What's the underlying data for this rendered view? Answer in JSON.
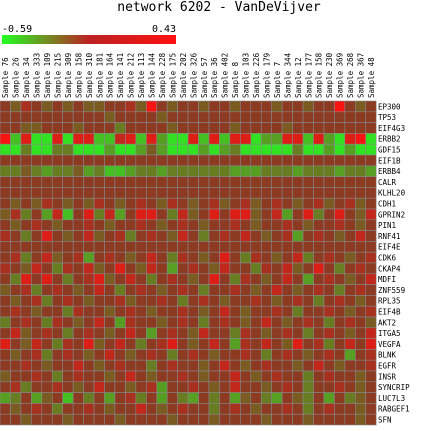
{
  "chart_data": {
    "type": "heatmap",
    "title": "network 6202 - VanDeVijver",
    "scale": {
      "min": "-0.59",
      "max": "0.43",
      "min_color": "#22ff22",
      "max_color": "#ff1111",
      "mid_color": "#8c3b22"
    },
    "columns": [
      "Sample 76",
      "Sample 26",
      "Sample 34",
      "Sample 333",
      "Sample 109",
      "Sample 215",
      "Sample 309",
      "Sample 158",
      "Sample 310",
      "Sample 181",
      "Sample 164",
      "Sample 141",
      "Sample 212",
      "Sample 113",
      "Sample 144",
      "Sample 228",
      "Sample 175",
      "Sample 202",
      "Sample 326",
      "Sample 57",
      "Sample 36",
      "Sample 402",
      "Sample 8",
      "Sample 103",
      "Sample 226",
      "Sample 179",
      "Sample 7",
      "Sample 344",
      "Sample 12",
      "Sample 177",
      "Sample 158",
      "Sample 230",
      "Sample 369",
      "Sample 268",
      "Sample 367",
      "Sample 48"
    ],
    "rows": [
      "EP300",
      "TP53",
      "EIF4G3",
      "ERBB2",
      "GDF15",
      "EIF1B",
      "ERBB4",
      "CALR",
      "KLHL20",
      "CDH1",
      "GPRIN2",
      "PIN1",
      "RNF41",
      "EIF4E",
      "CDK6",
      "CKAP4",
      "MDFI",
      "ZNF559",
      "RPL35",
      "EIF4B",
      "AKT2",
      "ITGA5",
      "VEGFA",
      "BLNK",
      "EGFR",
      "INSR",
      "SYNCRIP",
      "LUC7L3",
      "RABGEF1",
      "SFN"
    ],
    "values": [
      [
        0.0,
        -0.1,
        0.1,
        0.0,
        -0.1,
        0.0,
        -0.1,
        0.0,
        -0.1,
        -0.1,
        0.0,
        0.0,
        0.1,
        -0.1,
        0.4,
        0.0,
        -0.1,
        0.0,
        0.0,
        -0.1,
        0.0,
        0.0,
        -0.1,
        0.0,
        0.0,
        0.0,
        -0.1,
        0.0,
        0.0,
        -0.1,
        0.0,
        0.0,
        0.4,
        0.0,
        -0.1,
        0.0
      ],
      [
        0.0,
        0.0,
        0.0,
        0.0,
        0.0,
        0.0,
        0.0,
        0.0,
        0.0,
        0.0,
        -0.1,
        0.0,
        0.0,
        0.0,
        0.0,
        -0.1,
        0.0,
        0.0,
        0.0,
        0.0,
        0.0,
        0.0,
        0.0,
        0.0,
        0.0,
        0.0,
        0.0,
        0.0,
        0.0,
        0.0,
        0.0,
        0.0,
        0.0,
        0.0,
        0.0,
        0.0
      ],
      [
        0.0,
        0.0,
        -0.1,
        -0.1,
        0.0,
        0.0,
        0.0,
        -0.1,
        0.0,
        0.0,
        0.0,
        -0.2,
        0.0,
        0.0,
        0.0,
        0.0,
        -0.1,
        0.0,
        0.0,
        0.0,
        0.0,
        0.0,
        -0.1,
        0.0,
        0.0,
        0.0,
        0.0,
        -0.1,
        0.0,
        0.0,
        0.0,
        0.0,
        0.0,
        0.0,
        0.0,
        0.0
      ],
      [
        0.4,
        -0.4,
        0.3,
        -0.5,
        -0.5,
        0.3,
        -0.5,
        0.3,
        0.3,
        -0.4,
        -0.4,
        0.2,
        0.3,
        -0.4,
        0.3,
        -0.3,
        -0.5,
        -0.5,
        0.3,
        -0.4,
        0.3,
        -0.4,
        0.3,
        0.3,
        -0.5,
        -0.3,
        -0.3,
        0.3,
        0.3,
        -0.4,
        0.3,
        -0.3,
        -0.5,
        0.3,
        0.4,
        -0.5
      ],
      [
        -0.5,
        -0.5,
        -0.2,
        -0.5,
        -0.5,
        -0.2,
        -0.2,
        -0.5,
        -0.5,
        -0.5,
        -0.3,
        -0.5,
        -0.5,
        -0.3,
        -0.1,
        -0.3,
        -0.5,
        -0.5,
        -0.5,
        -0.3,
        -0.5,
        -0.3,
        -0.2,
        -0.5,
        -0.5,
        -0.5,
        -0.5,
        -0.5,
        -0.2,
        -0.5,
        -0.5,
        -0.3,
        -0.5,
        -0.3,
        -0.5,
        -0.5
      ],
      [
        0.0,
        0.0,
        0.0,
        0.0,
        0.0,
        0.0,
        0.0,
        0.0,
        0.0,
        0.0,
        0.0,
        0.0,
        0.0,
        0.0,
        0.0,
        0.0,
        0.0,
        0.0,
        0.0,
        0.0,
        0.0,
        0.0,
        0.0,
        0.0,
        0.0,
        0.0,
        0.0,
        0.0,
        0.0,
        0.0,
        0.0,
        0.0,
        0.0,
        0.0,
        0.0,
        0.0
      ],
      [
        -0.2,
        -0.2,
        -0.1,
        -0.2,
        -0.3,
        -0.2,
        -0.2,
        -0.1,
        -0.3,
        -0.2,
        -0.4,
        -0.4,
        -0.3,
        -0.2,
        -0.2,
        -0.3,
        -0.2,
        -0.2,
        -0.2,
        -0.2,
        -0.2,
        -0.2,
        -0.3,
        -0.3,
        -0.3,
        -0.2,
        -0.2,
        -0.2,
        -0.3,
        -0.2,
        -0.2,
        -0.2,
        -0.3,
        -0.2,
        -0.2,
        -0.3
      ],
      [
        0.0,
        0.0,
        0.0,
        0.0,
        0.0,
        0.0,
        0.0,
        0.0,
        0.0,
        0.0,
        0.0,
        0.0,
        0.0,
        0.0,
        0.0,
        0.0,
        0.0,
        0.0,
        0.0,
        0.0,
        0.0,
        0.0,
        0.0,
        0.0,
        0.0,
        0.0,
        0.0,
        0.0,
        0.0,
        0.0,
        0.0,
        0.0,
        0.0,
        0.0,
        0.0,
        0.0
      ],
      [
        0.0,
        0.0,
        0.0,
        0.0,
        0.0,
        0.0,
        0.0,
        0.0,
        0.0,
        0.0,
        0.0,
        0.0,
        0.0,
        0.0,
        0.0,
        0.0,
        0.0,
        0.0,
        0.0,
        0.0,
        0.0,
        0.0,
        0.0,
        0.0,
        0.0,
        0.0,
        0.0,
        0.0,
        0.0,
        0.0,
        0.0,
        0.0,
        0.0,
        0.0,
        0.0,
        0.0
      ],
      [
        0.0,
        -0.1,
        0.0,
        -0.1,
        0.1,
        0.0,
        -0.1,
        0.0,
        -0.1,
        0.1,
        0.0,
        -0.1,
        0.0,
        0.1,
        0.0,
        -0.1,
        0.1,
        0.0,
        -0.1,
        0.0,
        0.1,
        -0.1,
        0.0,
        0.1,
        -0.1,
        0.0,
        0.1,
        0.0,
        -0.1,
        0.0,
        0.1,
        -0.1,
        0.0,
        0.1,
        -0.1,
        0.0
      ],
      [
        -0.1,
        0.1,
        -0.2,
        0.0,
        -0.3,
        0.2,
        -0.4,
        0.0,
        0.3,
        -0.2,
        0.2,
        -0.3,
        0.0,
        0.3,
        0.3,
        0.0,
        -0.2,
        0.2,
        -0.1,
        0.0,
        0.3,
        0.0,
        0.3,
        0.3,
        -0.1,
        0.0,
        0.2,
        -0.3,
        0.0,
        0.3,
        -0.2,
        0.0,
        0.3,
        0.0,
        -0.1,
        0.2
      ],
      [
        0.0,
        -0.1,
        0.0,
        0.1,
        0.0,
        -0.1,
        0.0,
        0.0,
        0.1,
        0.0,
        -0.1,
        0.0,
        0.0,
        0.1,
        0.0,
        -0.1,
        0.0,
        0.1,
        0.0,
        -0.1,
        0.0,
        0.0,
        0.1,
        0.0,
        -0.1,
        0.0,
        0.0,
        0.1,
        0.0,
        -0.1,
        0.0,
        0.0,
        0.1,
        0.0,
        -0.1,
        0.0
      ],
      [
        0.1,
        0.0,
        -0.2,
        0.0,
        0.3,
        0.0,
        -0.1,
        0.0,
        0.2,
        -0.1,
        0.0,
        0.1,
        -0.2,
        0.0,
        0.1,
        0.0,
        -0.1,
        0.2,
        0.0,
        -0.2,
        0.0,
        0.1,
        0.0,
        0.2,
        0.0,
        -0.1,
        0.0,
        0.1,
        -0.3,
        0.0,
        0.1,
        0.0,
        -0.1,
        0.0,
        0.2,
        0.0
      ],
      [
        0.0,
        0.0,
        0.0,
        0.0,
        0.0,
        0.0,
        0.0,
        0.0,
        0.0,
        0.0,
        0.0,
        0.0,
        0.0,
        0.0,
        0.0,
        0.0,
        0.0,
        0.0,
        0.0,
        0.0,
        0.0,
        0.0,
        0.0,
        0.0,
        0.0,
        0.0,
        0.0,
        0.0,
        0.0,
        0.0,
        0.0,
        0.0,
        0.0,
        0.0,
        0.0,
        0.0
      ],
      [
        0.0,
        0.1,
        -0.2,
        0.0,
        0.2,
        -0.1,
        0.0,
        0.1,
        -0.3,
        0.0,
        0.1,
        0.0,
        -0.1,
        0.0,
        0.2,
        0.0,
        -0.2,
        0.1,
        0.0,
        -0.1,
        0.0,
        0.3,
        0.0,
        -0.2,
        0.1,
        0.0,
        -0.1,
        0.0,
        0.2,
        -0.2,
        0.0,
        0.1,
        0.0,
        -0.1,
        0.0,
        0.1
      ],
      [
        0.1,
        0.0,
        -0.1,
        0.2,
        0.0,
        -0.2,
        0.1,
        0.0,
        0.2,
        -0.1,
        0.0,
        0.3,
        0.0,
        -0.1,
        0.2,
        0.0,
        -0.3,
        0.0,
        0.1,
        0.0,
        -0.1,
        0.2,
        0.0,
        0.0,
        -0.2,
        0.1,
        0.0,
        0.2,
        -0.1,
        0.0,
        0.3,
        0.0,
        -0.2,
        0.0,
        0.1,
        0.0
      ],
      [
        0.0,
        -0.2,
        0.3,
        0.0,
        0.3,
        0.0,
        -0.2,
        0.0,
        0.1,
        0.3,
        -0.1,
        0.0,
        0.2,
        0.0,
        -0.2,
        0.0,
        0.1,
        0.0,
        -0.1,
        0.0,
        0.3,
        0.0,
        -0.2,
        0.1,
        0.0,
        -0.1,
        0.0,
        0.2,
        0.0,
        -0.3,
        0.0,
        0.1,
        0.0,
        -0.1,
        0.0,
        0.2
      ],
      [
        -0.1,
        0.0,
        0.1,
        -0.2,
        0.0,
        0.1,
        0.0,
        -0.1,
        0.0,
        0.2,
        0.0,
        -0.2,
        0.0,
        0.1,
        0.0,
        -0.1,
        0.0,
        0.1,
        0.0,
        -0.2,
        0.0,
        0.0,
        0.1,
        0.0,
        -0.1,
        0.0,
        0.2,
        0.0,
        -0.1,
        0.0,
        0.1,
        0.0,
        -0.2,
        0.0,
        0.1,
        0.0
      ],
      [
        0.0,
        -0.1,
        0.0,
        0.1,
        -0.2,
        0.0,
        0.1,
        0.0,
        -0.1,
        0.0,
        0.0,
        0.1,
        -0.1,
        0.0,
        0.0,
        0.1,
        0.0,
        -0.2,
        0.0,
        0.1,
        0.0,
        -0.1,
        0.0,
        0.0,
        0.1,
        0.0,
        -0.1,
        0.0,
        0.1,
        0.0,
        -0.2,
        0.0,
        0.1,
        0.0,
        -0.1,
        0.0
      ],
      [
        0.0,
        0.1,
        0.0,
        -0.1,
        0.0,
        0.0,
        -0.2,
        0.1,
        0.0,
        0.0,
        -0.1,
        0.0,
        0.1,
        0.0,
        -0.1,
        0.0,
        0.0,
        0.1,
        0.0,
        -0.1,
        0.0,
        0.2,
        0.0,
        -0.1,
        0.0,
        0.0,
        0.1,
        0.0,
        -0.2,
        0.0,
        0.0,
        0.1,
        0.0,
        -0.1,
        0.0,
        0.1
      ],
      [
        -0.2,
        0.0,
        0.1,
        0.0,
        -0.2,
        0.1,
        0.0,
        -0.1,
        0.0,
        0.2,
        0.0,
        -0.3,
        0.1,
        0.0,
        0.0,
        -0.1,
        0.0,
        0.1,
        0.0,
        -0.2,
        0.0,
        0.1,
        0.0,
        -0.1,
        0.0,
        0.2,
        0.0,
        -0.1,
        0.0,
        0.1,
        0.0,
        -0.2,
        0.0,
        0.1,
        0.0,
        -0.1
      ],
      [
        0.0,
        0.2,
        -0.1,
        0.0,
        0.1,
        0.0,
        -0.2,
        0.0,
        0.1,
        0.0,
        -0.1,
        0.0,
        0.2,
        0.0,
        -0.3,
        0.0,
        0.1,
        0.0,
        -0.1,
        0.2,
        0.0,
        0.0,
        -0.2,
        0.1,
        0.0,
        -0.1,
        0.0,
        0.1,
        0.0,
        -0.2,
        0.0,
        0.1,
        0.0,
        -0.1,
        0.0,
        0.2
      ],
      [
        0.3,
        0.0,
        -0.1,
        0.2,
        0.0,
        -0.2,
        0.1,
        0.0,
        0.3,
        -0.1,
        0.0,
        0.2,
        0.0,
        -0.2,
        0.0,
        0.1,
        0.3,
        0.0,
        -0.1,
        0.0,
        0.2,
        0.0,
        -0.3,
        0.1,
        0.0,
        0.2,
        0.0,
        -0.1,
        0.3,
        0.0,
        0.1,
        -0.2,
        0.0,
        0.2,
        0.0,
        0.3
      ],
      [
        0.0,
        -0.1,
        0.0,
        0.1,
        -0.2,
        0.0,
        0.1,
        0.0,
        -0.1,
        0.0,
        0.2,
        0.0,
        -0.1,
        0.0,
        0.1,
        0.0,
        -0.2,
        0.0,
        0.1,
        0.0,
        -0.1,
        0.0,
        0.0,
        0.1,
        0.0,
        -0.2,
        0.0,
        0.1,
        0.0,
        -0.1,
        0.0,
        0.1,
        0.0,
        -0.3,
        0.0,
        0.1
      ],
      [
        0.0,
        0.0,
        0.1,
        0.0,
        -0.1,
        0.0,
        0.0,
        0.2,
        0.0,
        -0.1,
        0.0,
        0.1,
        0.0,
        0.0,
        -0.2,
        0.0,
        0.1,
        0.0,
        0.0,
        -0.1,
        0.0,
        0.2,
        0.0,
        -0.1,
        0.0,
        0.1,
        0.0,
        0.0,
        -0.1,
        0.0,
        0.2,
        0.0,
        -0.1,
        0.0,
        0.0,
        0.1
      ],
      [
        -0.1,
        0.0,
        0.0,
        0.1,
        0.0,
        -0.2,
        0.0,
        0.1,
        0.0,
        0.0,
        -0.1,
        0.0,
        0.2,
        0.0,
        -0.1,
        0.0,
        0.0,
        0.1,
        0.0,
        -0.1,
        0.0,
        0.0,
        0.2,
        0.0,
        -0.1,
        0.0,
        0.1,
        0.0,
        0.0,
        -0.2,
        0.0,
        0.1,
        0.0,
        0.0,
        -0.1,
        0.0
      ],
      [
        0.0,
        0.1,
        -0.2,
        0.0,
        0.0,
        0.1,
        0.0,
        -0.1,
        0.0,
        0.2,
        0.0,
        0.0,
        -0.1,
        0.0,
        0.1,
        -0.3,
        0.0,
        0.0,
        0.1,
        0.0,
        -0.1,
        0.0,
        0.2,
        0.0,
        0.0,
        -0.1,
        0.0,
        0.1,
        0.0,
        -0.2,
        0.0,
        0.0,
        0.1,
        0.0,
        -0.1,
        0.0
      ],
      [
        -0.3,
        -0.2,
        0.0,
        -0.3,
        -0.1,
        0.0,
        -0.4,
        0.0,
        -0.2,
        0.0,
        -0.3,
        0.0,
        0.1,
        -0.2,
        0.0,
        -0.3,
        0.0,
        -0.2,
        -0.3,
        0.0,
        -0.2,
        0.0,
        -0.3,
        -0.1,
        0.0,
        -0.2,
        -0.3,
        0.0,
        -0.1,
        -0.2,
        0.0,
        -0.3,
        0.0,
        -0.2,
        -0.1,
        0.0
      ],
      [
        0.0,
        -0.1,
        0.0,
        0.1,
        0.0,
        -0.2,
        0.0,
        0.0,
        0.1,
        0.0,
        -0.1,
        0.0,
        0.0,
        0.2,
        0.0,
        -0.1,
        0.0,
        0.1,
        0.0,
        0.0,
        -0.2,
        0.0,
        0.1,
        0.0,
        -0.1,
        0.0,
        0.0,
        0.1,
        0.0,
        -0.2,
        0.0,
        0.1,
        0.0,
        0.0,
        -0.1,
        0.0
      ],
      [
        0.0,
        0.0,
        -0.1,
        0.0,
        0.0,
        0.0,
        -0.1,
        0.0,
        0.0,
        0.0,
        0.0,
        -0.1,
        0.0,
        0.0,
        0.0,
        0.0,
        -0.1,
        0.0,
        0.0,
        0.0,
        -0.1,
        0.0,
        0.0,
        0.0,
        0.0,
        -0.1,
        0.0,
        0.0,
        0.0,
        -0.1,
        0.0,
        0.0,
        0.0,
        0.0,
        -0.1,
        0.0
      ]
    ]
  }
}
